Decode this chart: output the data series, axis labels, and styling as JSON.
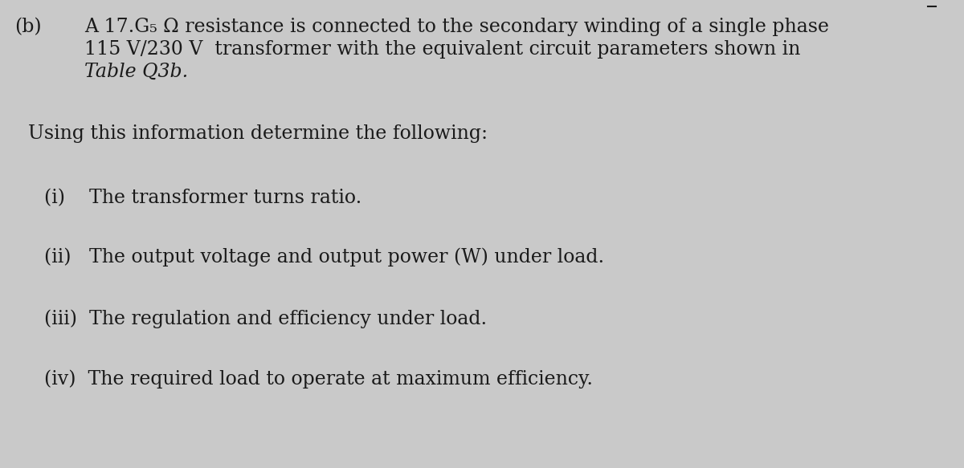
{
  "background_color": "#c9c9c9",
  "text_color": "#1a1a1a",
  "fig_width": 12.0,
  "fig_height": 5.83,
  "label_b": "(b)",
  "line1": "A 17.G₅ Ω resistance is connected to the secondary winding of a single phase",
  "line2": "115 V/230 V  transformer with the equivalent circuit parameters shown in",
  "line3": "Table Q3b.",
  "line4": "Using this information determine the following:",
  "item_i": "(i)    The transformer turns ratio.",
  "item_ii": "(ii)   The output voltage and output power (W) under load.",
  "item_iii": "(iii)  The regulation and efficiency under load.",
  "item_iv": "(iv)  The required load to operate at maximum efficiency.",
  "font_size_main": 17,
  "font_family": "DejaVu Serif"
}
